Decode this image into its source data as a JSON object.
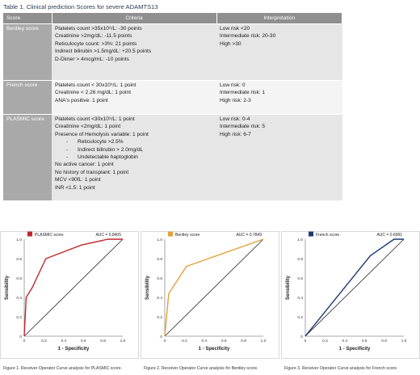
{
  "table": {
    "caption": "Table 1. Clinical prediction Scores for severe ADAMTS13",
    "headers": [
      "Score",
      "Criteria",
      "Interpretation"
    ],
    "rows": [
      {
        "score": "Bentley score",
        "criteria": [
          "Platelets count >35x10⁹/L: -30 points",
          "Creatinine >2mg/dL: -11.5 points",
          "Reticulocyte count: >3%: 21 points",
          "Indirect bilirubin >1.5mg/dL: +20.5 points",
          "D-Dimer > 4mcg/mL: -10 points"
        ],
        "interpretation": [
          "Low risk <20",
          "Intermediate risk: 20-30",
          "High >30"
        ]
      },
      {
        "score": "French score",
        "criteria": [
          "Platelets count < 30x10⁹/L: 1 point",
          "Creatinine < 2.26 mg/dL: 1 point",
          "ANA's positive: 1 point"
        ],
        "interpretation": [
          "Low risk: 0",
          "Intermediate risk: 1",
          "High risk: 2-3"
        ]
      },
      {
        "score": "PLASMIC score",
        "criteria_top": [
          "Platelets count <30x10⁹/L: 1 point",
          "Creatinine <2mg/dL: 1 point",
          "Presence of Hemolysis variable: 1 point"
        ],
        "criteria_sub": [
          "Reticulocyte >2.5%",
          "Indirect bilirubin > 2.0mg/dL",
          "Undetectable haptoglobin"
        ],
        "criteria_bottom": [
          "No active cancer: 1 point",
          "No history of transplant: 1 point",
          "MCV <90fL: 1 point",
          "INR <1.5: 1 point"
        ],
        "interpretation": [
          "Low risk: 0-4",
          "Intermediate risk: 5",
          "High risk: 6-7"
        ]
      }
    ]
  },
  "chart_data": [
    {
      "type": "line",
      "series": [
        {
          "name": "PLASMIC score",
          "x": [
            0,
            0.02,
            0.08,
            0.22,
            0.58,
            0.85,
            1.0
          ],
          "y": [
            0,
            0.4,
            0.5,
            0.8,
            0.94,
            1.0,
            1.0
          ]
        }
      ],
      "diagonal": true,
      "auc_text": "AUC = 0.8405",
      "color": "#c0272d",
      "xlabel": "1 - Specificity",
      "ylabel": "Sensibility",
      "xlim": [
        0,
        1
      ],
      "ylim": [
        0,
        1
      ],
      "ticks": [
        "0",
        "0.2",
        "0.4",
        "0.6",
        "0.8",
        "1.0"
      ],
      "legend": "top-left",
      "caption": "Figure 1. Receiver Operator Curve analysis for PLASMIC score."
    },
    {
      "type": "line",
      "series": [
        {
          "name": "Bentley score",
          "x": [
            0,
            0.04,
            0.22,
            1.0
          ],
          "y": [
            0,
            0.44,
            0.72,
            1.0
          ]
        }
      ],
      "diagonal": true,
      "auc_text": "AUC = 0.7849",
      "color": "#e5a13a",
      "xlabel": "1 - Specificity",
      "ylabel": "Sensibility",
      "xlim": [
        0,
        1
      ],
      "ylim": [
        0,
        1
      ],
      "ticks": [
        "0",
        "0.2",
        "0.4",
        "0.6",
        "0.8",
        "1.0"
      ],
      "legend": "top-left",
      "caption": "Figure 2. Receiver Operator Curve analysis for Bentley score."
    },
    {
      "type": "line",
      "series": [
        {
          "name": "French score",
          "x": [
            0,
            0.66,
            0.9,
            1.0
          ],
          "y": [
            0,
            0.83,
            1.0,
            1.0
          ]
        }
      ],
      "diagonal": true,
      "auc_text": "AUC = 0.6081",
      "color": "#1f3a6e",
      "xlabel": "1 - Specificity",
      "ylabel": "Sensibility",
      "xlim": [
        0,
        1
      ],
      "ylim": [
        0,
        1
      ],
      "ticks": [
        "0",
        "0.2",
        "0.4",
        "0.6",
        "0.8",
        "1.0"
      ],
      "legend": "top-left",
      "caption": "Figure 3. Receiver Operator Curve analysis for French score."
    }
  ]
}
